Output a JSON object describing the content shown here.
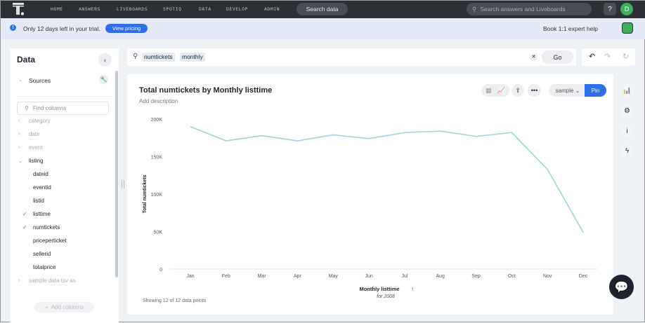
{
  "nav": {
    "items": [
      "HOME",
      "ANSWERS",
      "LIVEBOARDS",
      "SPOTIQ",
      "DATA",
      "DEVELOP",
      "ADMIN"
    ],
    "search_data": "Search data",
    "global_search_placeholder": "Search answers and Liveboards",
    "help": "?",
    "avatar": "D"
  },
  "banner": {
    "text": "Only 12 days left in your trial.",
    "pricing": "View pricing",
    "expert": "Book 1:1 expert help"
  },
  "panel": {
    "title": "Data",
    "sources": "Sources",
    "find_placeholder": "Find columns",
    "tables": [
      {
        "label": "category",
        "expanded": false
      },
      {
        "label": "date",
        "expanded": false
      },
      {
        "label": "event",
        "expanded": false
      },
      {
        "label": "listing",
        "expanded": true
      }
    ],
    "columns": [
      {
        "label": "dateid",
        "checked": false
      },
      {
        "label": "eventid",
        "checked": false
      },
      {
        "label": "listid",
        "checked": false
      },
      {
        "label": "listtime",
        "checked": true
      },
      {
        "label": "numtickets",
        "checked": true
      },
      {
        "label": "priceperticket",
        "checked": false
      },
      {
        "label": "sellerid",
        "checked": false
      },
      {
        "label": "totalprice",
        "checked": false
      }
    ],
    "extra_table": "sample data tsv as",
    "add_columns": "Add columns"
  },
  "search": {
    "tokens": [
      "numtickets",
      "monthly"
    ],
    "go": "Go"
  },
  "card": {
    "title": "Total numtickets by Monthly listtime",
    "description": "Add description",
    "sample": "sample",
    "pin": "Pin",
    "footnote": "Showing 12 of 12 data points"
  },
  "chart_data": {
    "type": "line",
    "title": "Total numtickets by Monthly listtime",
    "xlabel": "Monthly listtime",
    "xsublabel": "for 2008",
    "ylabel": "Total numtickets",
    "categories": [
      "Jan",
      "Feb",
      "Mar",
      "Apr",
      "May",
      "Jun",
      "Jul",
      "Aug",
      "Sep",
      "Oct",
      "Nov",
      "Dec"
    ],
    "values": [
      190000,
      171000,
      178000,
      171000,
      179000,
      174000,
      182000,
      184000,
      177000,
      182000,
      133000,
      49000
    ],
    "ylim": [
      0,
      200000
    ],
    "yticks": [
      0,
      50000,
      100000,
      150000,
      200000
    ],
    "ytick_labels": [
      "0",
      "50K",
      "100K",
      "150K",
      "200K"
    ],
    "grid": false,
    "color": "#9fd3da"
  },
  "colors": {
    "accent": "#2f6ee5",
    "nav_bg": "#2b2f36",
    "banner_bg": "#e4ebf7"
  }
}
